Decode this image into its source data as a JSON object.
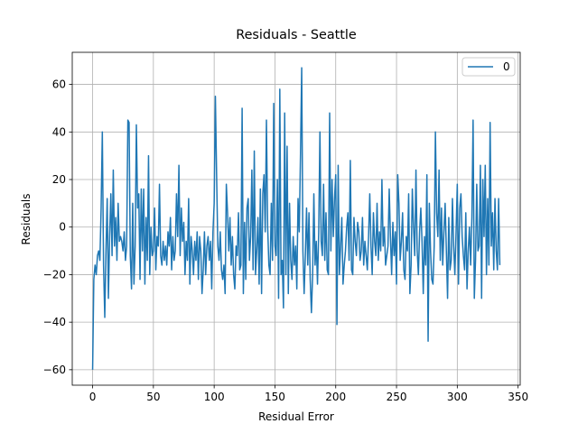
{
  "chart_data": {
    "type": "line",
    "title": "Residuals - Seattle",
    "x_label": "Residual Error",
    "y_label": "Residuals",
    "xlim": [
      -16.75,
      351.75
    ],
    "ylim": [
      -66.5,
      73.5
    ],
    "xticks": [
      0,
      50,
      100,
      150,
      200,
      250,
      300,
      350
    ],
    "yticks": [
      {
        "value": -60,
        "label": "−60"
      },
      {
        "value": -40,
        "label": "−40"
      },
      {
        "value": -20,
        "label": "−20"
      },
      0,
      20,
      40,
      60
    ],
    "grid": true,
    "legend": "upper right",
    "series": [
      {
        "name": "0",
        "color": "#1f77b4",
        "values": [
          -60,
          -22,
          -16,
          -20,
          -12,
          -10,
          -14,
          8,
          40,
          -16,
          -38,
          -10,
          12,
          -30,
          -4,
          14,
          -12,
          24,
          -8,
          4,
          -14,
          10,
          -6,
          -4,
          -6,
          -10,
          -2,
          -14,
          -8,
          45,
          44,
          -12,
          -26,
          10,
          -24,
          -8,
          43,
          8,
          14,
          -22,
          16,
          -10,
          16,
          -24,
          4,
          -14,
          30,
          -20,
          0,
          -12,
          -10,
          8,
          -18,
          -4,
          -8,
          18,
          -12,
          -16,
          -6,
          -14,
          -8,
          -16,
          -2,
          -8,
          4,
          -18,
          -4,
          -14,
          -10,
          14,
          -4,
          26,
          -12,
          8,
          -6,
          2,
          -20,
          -6,
          -14,
          12,
          -24,
          -4,
          -10,
          -20,
          -6,
          -14,
          -2,
          -22,
          -4,
          -10,
          -28,
          -18,
          -2,
          -20,
          -8,
          -4,
          -14,
          -6,
          -26,
          -2,
          10,
          55,
          22,
          -8,
          -14,
          -2,
          -18,
          -22,
          -16,
          -28,
          18,
          6,
          -10,
          4,
          -16,
          -4,
          -20,
          -26,
          -8,
          -12,
          6,
          -18,
          -16,
          50,
          -28,
          2,
          -22,
          8,
          12,
          -14,
          -4,
          24,
          -18,
          32,
          -20,
          -10,
          4,
          -24,
          16,
          -28,
          14,
          22,
          -2,
          45,
          0,
          -16,
          -20,
          10,
          -14,
          52,
          -8,
          -12,
          20,
          -30,
          58,
          -20,
          -14,
          -34,
          48,
          -20,
          34,
          -28,
          10,
          -14,
          -22,
          -4,
          -16,
          -8,
          -26,
          12,
          -2,
          30,
          67,
          -10,
          -28,
          -12,
          8,
          -16,
          6,
          -22,
          -36,
          -20,
          14,
          -16,
          -6,
          -24,
          -2,
          40,
          -6,
          -12,
          18,
          -14,
          6,
          -18,
          -20,
          48,
          -10,
          20,
          -4,
          12,
          22,
          -41,
          26,
          -20,
          -8,
          4,
          -24,
          -16,
          -10,
          0,
          6,
          -14,
          28,
          -18,
          -20,
          4,
          -6,
          -12,
          2,
          -2,
          -14,
          -10,
          4,
          -16,
          -6,
          -12,
          -18,
          -4,
          14,
          -8,
          -20,
          6,
          -6,
          -12,
          10,
          -14,
          -2,
          -10,
          20,
          -8,
          0,
          -16,
          -12,
          -8,
          16,
          -4,
          -20,
          2,
          -12,
          -2,
          -24,
          22,
          10,
          -14,
          -6,
          6,
          -18,
          -22,
          -4,
          -10,
          14,
          -28,
          -16,
          16,
          0,
          -12,
          24,
          -10,
          -20,
          -2,
          8,
          -6,
          -28,
          -4,
          -16,
          22,
          -48,
          10,
          -10,
          -22,
          -24,
          -8,
          40,
          6,
          -4,
          24,
          -14,
          8,
          -16,
          -2,
          10,
          -10,
          -30,
          4,
          -18,
          -14,
          12,
          -8,
          -20,
          -2,
          18,
          -24,
          8,
          14,
          -4,
          -12,
          -18,
          6,
          -26,
          -10,
          0,
          -16,
          4,
          45,
          -30,
          -14,
          18,
          -10,
          -8,
          26,
          -30,
          20,
          -4,
          26,
          -20,
          12,
          -16,
          44,
          -8,
          6,
          -18,
          12,
          -10,
          -18,
          12,
          -16
        ]
      }
    ]
  }
}
